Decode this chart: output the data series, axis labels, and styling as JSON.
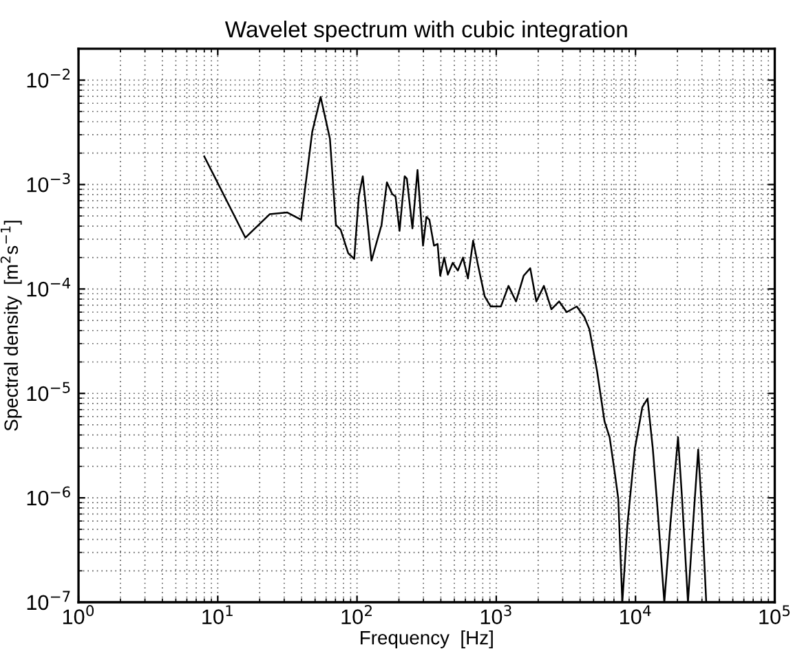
{
  "chart_data": {
    "type": "line",
    "title": "Wavelet spectrum with cubic integration",
    "xlabel": "Frequency  [Hz]",
    "ylabel": "Spectral density  [m$^{2}$s$^{−1}$]",
    "log": "xy",
    "grid": true,
    "color": "#000000",
    "xlim": [
      1,
      100000
    ],
    "ylim": [
      1e-07,
      0.02
    ],
    "xticks": [
      {
        "value": 1,
        "label": "10$^{0}$"
      },
      {
        "value": 10,
        "label": "10$^{1}$"
      },
      {
        "value": 100,
        "label": "10$^{2}$"
      },
      {
        "value": 1000,
        "label": "10$^{3}$"
      },
      {
        "value": 10000,
        "label": "10$^{4}$"
      },
      {
        "value": 100000,
        "label": "10$^{5}$"
      }
    ],
    "yticks": [
      {
        "value": 1e-07,
        "label": "10$^{−7}$"
      },
      {
        "value": 1e-06,
        "label": "10$^{−6}$"
      },
      {
        "value": 1e-05,
        "label": "10$^{−5}$"
      },
      {
        "value": 0.0001,
        "label": "10$^{−4}$"
      },
      {
        "value": 0.001,
        "label": "10$^{−3}$"
      },
      {
        "value": 0.01,
        "label": "10$^{−2}$"
      }
    ],
    "x": [
      8.0,
      15.8,
      23.6,
      31.6,
      39.7,
      47.7,
      54.8,
      63.9,
      70.6,
      76.3,
      86.5,
      95.5,
      103,
      110,
      127,
      150,
      164,
      179,
      189,
      202,
      220,
      228,
      250,
      272,
      298,
      315,
      331,
      357,
      379,
      396,
      423,
      449,
      487,
      530,
      577,
      626,
      682,
      741,
      826,
      912,
      1080,
      1224,
      1387,
      1573,
      1754,
      1940,
      2198,
      2489,
      2830,
      3205,
      3785,
      4290,
      4670,
      5290,
      5990,
      6520,
      7100,
      7520,
      8040,
      8750,
      9910,
      11200,
      12200,
      13300,
      14500,
      16100,
      17800,
      20200,
      21600,
      23800,
      25900,
      28200,
      30100,
      32200
    ],
    "values": [
      0.00186,
      0.00031,
      0.00052,
      0.00054,
      0.00046,
      0.0032,
      0.0069,
      0.00275,
      0.00041,
      0.00037,
      0.00022,
      0.000194,
      0.00077,
      0.0012,
      0.000187,
      0.00041,
      0.00105,
      0.00081,
      0.00077,
      0.00036,
      0.0012,
      0.00114,
      0.00038,
      0.00138,
      0.00026,
      0.00049,
      0.00046,
      0.00026,
      0.00027,
      0.000134,
      0.0002,
      0.000137,
      0.000178,
      0.00015,
      0.0002,
      0.000126,
      0.00029,
      0.000167,
      8.5e-05,
      6.8e-05,
      6.8e-05,
      0.000107,
      7.6e-05,
      0.000134,
      0.000158,
      7.6e-05,
      0.000107,
      6.4e-05,
      7.6e-05,
      6e-05,
      6.8e-05,
      5.4e-05,
      4.1e-05,
      1.65e-05,
      5.4e-06,
      3.8e-06,
      1.73e-06,
      9.8e-07,
      1e-07,
      5.6e-07,
      3e-06,
      7.4e-06,
      8.9e-06,
      3e-06,
      6.9e-07,
      1e-07,
      5.6e-07,
      3.8e-06,
      9.8e-07,
      1e-07,
      5.6e-07,
      2.9e-06,
      6.9e-07,
      1e-07
    ]
  }
}
